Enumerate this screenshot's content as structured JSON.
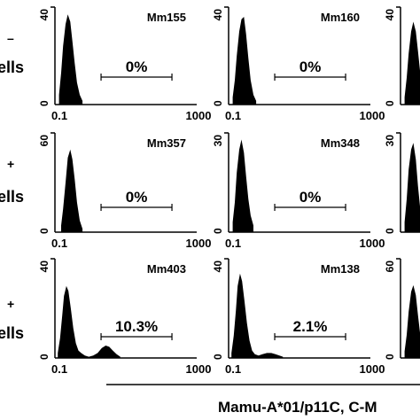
{
  "figure": {
    "row_labels": [
      {
        "lines": [
          "–",
          "ells"
        ]
      },
      {
        "lines": [
          "+",
          "ells"
        ]
      },
      {
        "lines": [
          "+",
          "ells"
        ]
      }
    ],
    "x_axis_title": "Mamu-A*01/p11C, C-M"
  },
  "chart_data": [
    {
      "type": "histogram",
      "row": 0,
      "col": 0,
      "label": "Mm155",
      "ymax_label": "40",
      "ylim": [
        0,
        40
      ],
      "x_ticks": [
        "0.1",
        "1000"
      ],
      "xscale": "log",
      "xlim": [
        0.1,
        1000
      ],
      "gate_percent": "0%",
      "gate_range": [
        2,
        200
      ],
      "bins": [
        [
          0.13,
          4
        ],
        [
          0.15,
          13
        ],
        [
          0.17,
          24
        ],
        [
          0.2,
          33
        ],
        [
          0.23,
          37
        ],
        [
          0.27,
          34
        ],
        [
          0.31,
          26
        ],
        [
          0.36,
          17
        ],
        [
          0.42,
          9
        ],
        [
          0.5,
          4
        ],
        [
          0.6,
          1.5
        ]
      ]
    },
    {
      "type": "histogram",
      "row": 0,
      "col": 1,
      "label": "Mm160",
      "ymax_label": "40",
      "ylim": [
        0,
        40
      ],
      "x_ticks": [
        "0.1",
        "1000"
      ],
      "xscale": "log",
      "xlim": [
        0.1,
        1000
      ],
      "gate_percent": "0%",
      "gate_range": [
        2,
        200
      ],
      "bins": [
        [
          0.13,
          3
        ],
        [
          0.15,
          10
        ],
        [
          0.17,
          20
        ],
        [
          0.2,
          30
        ],
        [
          0.23,
          35
        ],
        [
          0.27,
          36
        ],
        [
          0.31,
          29
        ],
        [
          0.36,
          19
        ],
        [
          0.42,
          10
        ],
        [
          0.5,
          4
        ],
        [
          0.6,
          1.5
        ]
      ]
    },
    {
      "type": "histogram",
      "row": 0,
      "col": 2,
      "label": "",
      "ymax_label": "40",
      "ylim": [
        0,
        40
      ],
      "x_ticks": [],
      "xscale": "log",
      "xlim": [
        0.1,
        1000
      ],
      "gate_percent": "",
      "gate_range": [],
      "bins": [
        [
          0.13,
          3
        ],
        [
          0.15,
          11
        ],
        [
          0.17,
          21
        ],
        [
          0.2,
          30
        ],
        [
          0.23,
          34
        ],
        [
          0.27,
          30
        ],
        [
          0.31,
          22
        ],
        [
          0.36,
          13
        ],
        [
          0.42,
          6
        ],
        [
          0.5,
          2
        ]
      ]
    },
    {
      "type": "histogram",
      "row": 1,
      "col": 0,
      "label": "Mm357",
      "ymax_label": "60",
      "ylim": [
        0,
        60
      ],
      "x_ticks": [
        "0.1",
        "1000"
      ],
      "xscale": "log",
      "xlim": [
        0.1,
        1000
      ],
      "gate_percent": "0%",
      "gate_range": [
        2,
        200
      ],
      "bins": [
        [
          0.15,
          4
        ],
        [
          0.17,
          14
        ],
        [
          0.2,
          30
        ],
        [
          0.23,
          45
        ],
        [
          0.27,
          50
        ],
        [
          0.31,
          44
        ],
        [
          0.36,
          32
        ],
        [
          0.42,
          18
        ],
        [
          0.5,
          7
        ],
        [
          0.6,
          2
        ]
      ]
    },
    {
      "type": "histogram",
      "row": 1,
      "col": 1,
      "label": "Mm348",
      "ymax_label": "30",
      "ylim": [
        0,
        30
      ],
      "x_ticks": [
        "0.1",
        "1000"
      ],
      "xscale": "log",
      "xlim": [
        0.1,
        1000
      ],
      "gate_percent": "0%",
      "gate_range": [
        2,
        200
      ],
      "bins": [
        [
          0.13,
          3
        ],
        [
          0.15,
          9
        ],
        [
          0.17,
          18
        ],
        [
          0.2,
          25
        ],
        [
          0.23,
          28
        ],
        [
          0.27,
          24
        ],
        [
          0.31,
          17
        ],
        [
          0.36,
          10
        ],
        [
          0.42,
          5
        ],
        [
          0.5,
          2
        ]
      ]
    },
    {
      "type": "histogram",
      "row": 1,
      "col": 2,
      "label": "",
      "ymax_label": "30",
      "ylim": [
        0,
        30
      ],
      "x_ticks": [],
      "xscale": "log",
      "xlim": [
        0.1,
        1000
      ],
      "gate_percent": "",
      "gate_range": [],
      "bins": [
        [
          0.13,
          3
        ],
        [
          0.15,
          10
        ],
        [
          0.17,
          19
        ],
        [
          0.2,
          25
        ],
        [
          0.23,
          27
        ],
        [
          0.27,
          22
        ],
        [
          0.31,
          14
        ],
        [
          0.36,
          7
        ],
        [
          0.42,
          3
        ]
      ]
    },
    {
      "type": "histogram",
      "row": 2,
      "col": 0,
      "label": "Mm403",
      "ymax_label": "40",
      "ylim": [
        0,
        40
      ],
      "x_ticks": [
        "0.1",
        "1000"
      ],
      "xscale": "log",
      "xlim": [
        0.1,
        1000
      ],
      "gate_percent": "10.3%",
      "gate_range": [
        2,
        200
      ],
      "bins": [
        [
          0.12,
          2
        ],
        [
          0.14,
          8
        ],
        [
          0.16,
          17
        ],
        [
          0.18,
          25
        ],
        [
          0.21,
          29
        ],
        [
          0.24,
          27
        ],
        [
          0.28,
          20
        ],
        [
          0.33,
          12
        ],
        [
          0.39,
          6
        ],
        [
          0.46,
          3
        ],
        [
          0.55,
          2
        ],
        [
          0.7,
          1
        ],
        [
          0.9,
          0.5
        ],
        [
          1.2,
          1
        ],
        [
          1.6,
          2
        ],
        [
          2.1,
          4
        ],
        [
          2.7,
          5
        ],
        [
          3.4,
          4.5
        ],
        [
          4.3,
          3
        ],
        [
          5.5,
          1.5
        ],
        [
          7,
          0.5
        ]
      ]
    },
    {
      "type": "histogram",
      "row": 2,
      "col": 1,
      "label": "Mm138",
      "ymax_label": "40",
      "ylim": [
        0,
        40
      ],
      "x_ticks": [
        "0.1",
        "1000"
      ],
      "xscale": "log",
      "xlim": [
        0.1,
        1000
      ],
      "gate_percent": "2.1%",
      "gate_range": [
        2,
        200
      ],
      "bins": [
        [
          0.12,
          2
        ],
        [
          0.14,
          9
        ],
        [
          0.16,
          19
        ],
        [
          0.18,
          29
        ],
        [
          0.21,
          34
        ],
        [
          0.24,
          31
        ],
        [
          0.28,
          23
        ],
        [
          0.33,
          14
        ],
        [
          0.39,
          7
        ],
        [
          0.46,
          3
        ],
        [
          0.55,
          1.5
        ],
        [
          0.7,
          1
        ],
        [
          0.9,
          1.5
        ],
        [
          1.2,
          2
        ],
        [
          1.6,
          2
        ],
        [
          2.1,
          1.5
        ],
        [
          2.7,
          1
        ],
        [
          3.4,
          0.5
        ]
      ]
    },
    {
      "type": "histogram",
      "row": 2,
      "col": 2,
      "label": "",
      "ymax_label": "60",
      "ylim": [
        0,
        60
      ],
      "x_ticks": [],
      "xscale": "log",
      "xlim": [
        0.1,
        1000
      ],
      "gate_percent": "",
      "gate_range": [],
      "bins": [
        [
          0.13,
          4
        ],
        [
          0.15,
          14
        ],
        [
          0.17,
          28
        ],
        [
          0.2,
          40
        ],
        [
          0.23,
          44
        ],
        [
          0.27,
          38
        ],
        [
          0.31,
          26
        ],
        [
          0.36,
          14
        ],
        [
          0.42,
          6
        ],
        [
          0.5,
          2
        ]
      ]
    }
  ]
}
